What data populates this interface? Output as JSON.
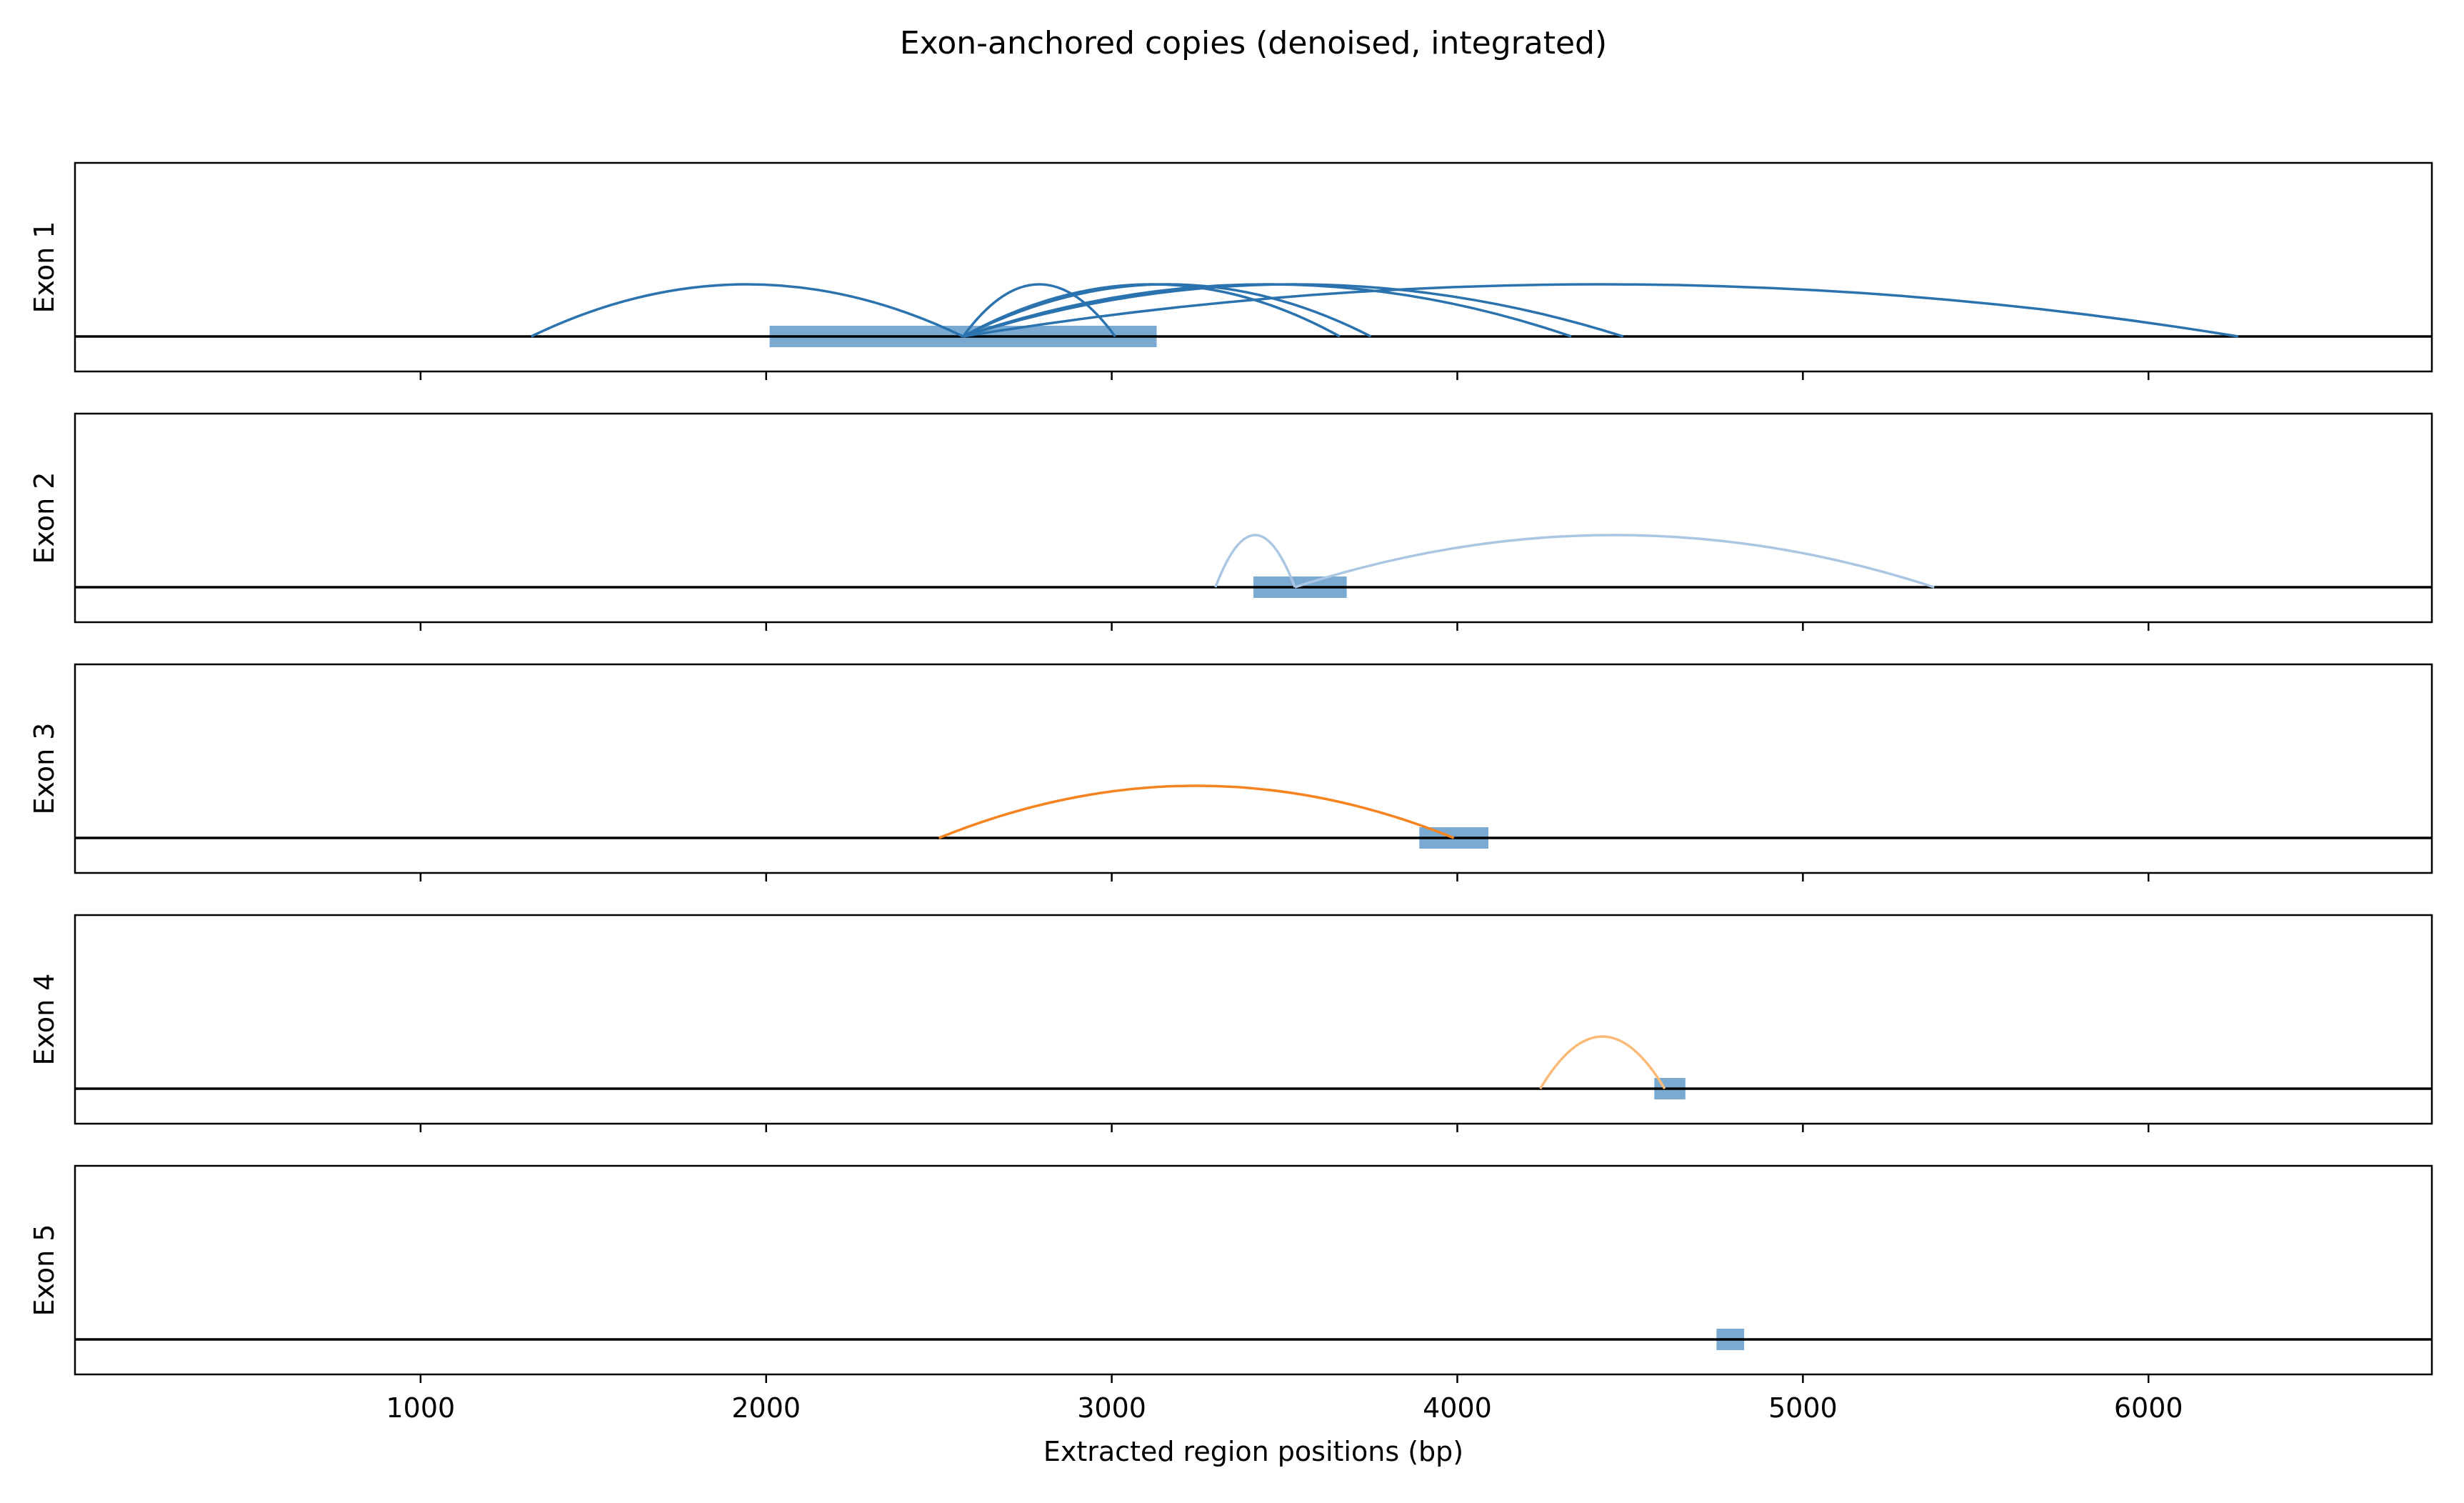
{
  "chart_data": {
    "type": "arc",
    "title": "Exon-anchored copies (denoised, integrated)",
    "xlabel": "Extracted region positions (bp)",
    "xlim": [
      0,
      6820
    ],
    "xticks": [
      1000,
      2000,
      3000,
      4000,
      5000,
      6000
    ],
    "xtick_labels": [
      "1000",
      "2000",
      "3000",
      "4000",
      "5000",
      "6000"
    ],
    "grid": false,
    "panels": [
      {
        "name": "Exon 1",
        "exon": {
          "start": 2010,
          "end": 3130,
          "color": "#7aaad1"
        },
        "arc_color": "#2b73ae",
        "arcs": [
          {
            "from": 1320,
            "to": 2570
          },
          {
            "from": 2570,
            "to": 3010
          },
          {
            "from": 2570,
            "to": 3660
          },
          {
            "from": 2570,
            "to": 3750
          },
          {
            "from": 2570,
            "to": 4330
          },
          {
            "from": 2570,
            "to": 4480
          },
          {
            "from": 2570,
            "to": 6260
          }
        ]
      },
      {
        "name": "Exon 2",
        "exon": {
          "start": 3410,
          "end": 3680,
          "color": "#7aaad1"
        },
        "arc_color": "#abc6e3",
        "arcs": [
          {
            "from": 3300,
            "to": 3530
          },
          {
            "from": 3530,
            "to": 5380
          }
        ]
      },
      {
        "name": "Exon 3",
        "exon": {
          "start": 3890,
          "end": 4090,
          "color": "#7aaad1"
        },
        "arc_color": "#f5831f",
        "arcs": [
          {
            "from": 2500,
            "to": 3990
          }
        ]
      },
      {
        "name": "Exon 4",
        "exon": {
          "start": 4570,
          "end": 4660,
          "color": "#7aaad1"
        },
        "arc_color": "#fbba78",
        "arcs": [
          {
            "from": 4240,
            "to": 4600
          }
        ]
      },
      {
        "name": "Exon 5",
        "exon": {
          "start": 4750,
          "end": 4830,
          "color": "#7aaad1"
        },
        "arc_color": "#2b73ae",
        "arcs": []
      }
    ]
  }
}
